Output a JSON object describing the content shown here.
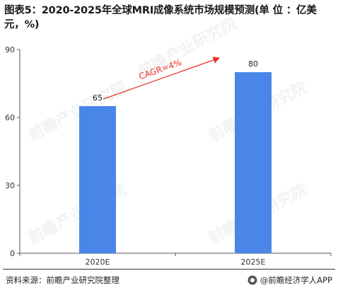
{
  "title": "图表5：2020-2025年全球MRI成像系统市场规模预测(单 位 ：亿美元，%)",
  "footer": {
    "source": "资料来源：前瞻产业研究院整理",
    "brand": "@前瞻经济学人APP"
  },
  "watermark": "前瞻产业研究院",
  "colors": {
    "bar": "#4a86e8",
    "arrow": "#e8302a",
    "axis": "#555555"
  },
  "chart_data": {
    "type": "bar",
    "title": "图表5：2020-2025年全球MRI成像系统市场规模预测(单 位 ：亿美元，%)",
    "categories": [
      "2020E",
      "2025E"
    ],
    "values": [
      65,
      80
    ],
    "value_labels": [
      "65",
      "80"
    ],
    "ylim": [
      0,
      90
    ],
    "yticks": [
      0,
      30,
      60,
      90
    ],
    "xlabel": "",
    "ylabel": "",
    "grid": false,
    "annotation": {
      "text": "CAGR=4%",
      "from": "2020E",
      "to": "2025E"
    }
  }
}
